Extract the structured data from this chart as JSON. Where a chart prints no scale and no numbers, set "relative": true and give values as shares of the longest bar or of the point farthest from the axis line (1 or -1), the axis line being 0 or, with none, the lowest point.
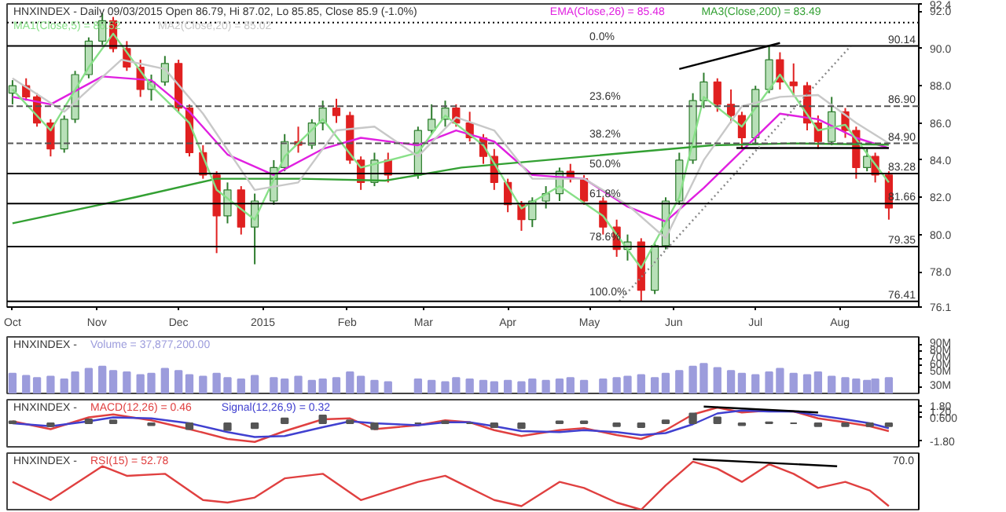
{
  "chart_data": [
    {
      "type": "candlestick",
      "title": "HNXINDEX - Daily 09/03/2015 Open 86.79, Hi 87.02, Lo 85.85, Close 85.9 (-1.0%)",
      "legend": "top left",
      "tick_labels": true,
      "x": [
        "2014-10-01",
        "2014-10-06",
        "2014-10-10",
        "2014-10-15",
        "2014-10-20",
        "2014-10-24",
        "2014-10-29",
        "2014-11-03",
        "2014-11-07",
        "2014-11-12",
        "2014-11-17",
        "2014-11-21",
        "2014-11-26",
        "2014-12-01",
        "2014-12-05",
        "2014-12-10",
        "2014-12-15",
        "2014-12-19",
        "2014-12-24",
        "2014-12-29",
        "2015-01-05",
        "2015-01-09",
        "2015-01-14",
        "2015-01-19",
        "2015-01-23",
        "2015-01-28",
        "2015-02-02",
        "2015-02-06",
        "2015-02-11",
        "2015-02-16",
        "2015-02-27",
        "2015-03-04",
        "2015-03-09",
        "2015-03-13",
        "2015-03-18",
        "2015-03-23",
        "2015-03-27",
        "2015-04-01",
        "2015-04-06",
        "2015-04-10",
        "2015-04-15",
        "2015-04-20",
        "2015-04-24",
        "2015-04-29",
        "2015-05-06",
        "2015-05-11",
        "2015-05-15",
        "2015-05-20",
        "2015-05-25",
        "2015-05-29",
        "2015-06-03",
        "2015-06-08",
        "2015-06-12",
        "2015-06-17",
        "2015-06-22",
        "2015-06-26",
        "2015-07-01",
        "2015-07-06",
        "2015-07-10",
        "2015-07-15",
        "2015-07-20",
        "2015-07-24",
        "2015-07-29",
        "2015-08-03",
        "2015-08-07",
        "2015-08-11",
        "2015-08-14",
        "2015-08-19"
      ],
      "ohlc": [
        [
          87.6,
          88.3,
          87.0,
          88.0
        ],
        [
          88.0,
          88.4,
          87.2,
          87.4
        ],
        [
          87.4,
          87.6,
          85.8,
          86.0
        ],
        [
          86.0,
          86.2,
          84.2,
          84.6
        ],
        [
          84.6,
          86.4,
          84.4,
          86.2
        ],
        [
          86.2,
          88.8,
          86.0,
          88.6
        ],
        [
          88.6,
          90.6,
          88.4,
          90.4
        ],
        [
          90.4,
          91.9,
          90.2,
          91.5
        ],
        [
          91.5,
          91.7,
          89.8,
          90.0
        ],
        [
          90.0,
          90.4,
          88.8,
          89.0
        ],
        [
          89.0,
          89.4,
          87.4,
          87.8
        ],
        [
          87.8,
          88.6,
          87.2,
          88.2
        ],
        [
          88.2,
          89.6,
          88.0,
          89.2
        ],
        [
          89.2,
          89.4,
          86.6,
          86.8
        ],
        [
          86.8,
          87.0,
          84.2,
          84.4
        ],
        [
          84.4,
          84.8,
          83.0,
          83.2
        ],
        [
          83.2,
          83.4,
          79.0,
          81.0
        ],
        [
          81.0,
          82.8,
          80.6,
          82.4
        ],
        [
          82.4,
          82.6,
          80.0,
          80.4
        ],
        [
          80.4,
          82.2,
          78.4,
          81.8
        ],
        [
          81.8,
          84.0,
          81.6,
          83.6
        ],
        [
          83.6,
          85.4,
          83.4,
          85.0
        ],
        [
          85.0,
          85.8,
          84.4,
          84.8
        ],
        [
          84.8,
          86.2,
          84.6,
          86.0
        ],
        [
          86.0,
          87.2,
          85.6,
          86.8
        ],
        [
          86.8,
          87.3,
          86.0,
          86.4
        ],
        [
          86.4,
          86.6,
          83.8,
          84.0
        ],
        [
          84.0,
          84.2,
          82.4,
          82.8
        ],
        [
          82.8,
          84.4,
          82.6,
          84.0
        ],
        [
          84.0,
          84.4,
          82.8,
          83.2
        ],
        [
          83.2,
          85.8,
          83.0,
          85.6
        ],
        [
          85.6,
          87.0,
          85.4,
          86.2
        ],
        [
          86.2,
          87.2,
          85.8,
          86.8
        ],
        [
          86.8,
          87.0,
          85.8,
          86.0
        ],
        [
          86.0,
          86.6,
          85.0,
          85.2
        ],
        [
          85.2,
          85.4,
          83.8,
          84.2
        ],
        [
          84.2,
          84.6,
          82.4,
          82.8
        ],
        [
          82.8,
          83.0,
          81.2,
          81.6
        ],
        [
          81.6,
          81.8,
          80.2,
          80.8
        ],
        [
          80.8,
          82.0,
          80.4,
          81.8
        ],
        [
          81.8,
          82.6,
          81.4,
          82.2
        ],
        [
          82.2,
          83.6,
          81.8,
          83.4
        ],
        [
          83.4,
          83.8,
          82.8,
          83.0
        ],
        [
          83.0,
          83.2,
          81.6,
          81.8
        ],
        [
          81.8,
          82.0,
          80.0,
          80.4
        ],
        [
          80.4,
          80.8,
          78.8,
          79.2
        ],
        [
          79.2,
          80.0,
          78.6,
          79.6
        ],
        [
          79.6,
          79.8,
          76.41,
          77.0
        ],
        [
          77.0,
          79.6,
          76.8,
          79.4
        ],
        [
          79.4,
          82.0,
          79.2,
          81.8
        ],
        [
          81.8,
          84.4,
          81.6,
          84.0
        ],
        [
          84.0,
          87.6,
          83.8,
          87.2
        ],
        [
          87.2,
          88.7,
          86.8,
          88.2
        ],
        [
          88.2,
          88.4,
          86.6,
          87.0
        ],
        [
          87.0,
          87.8,
          86.0,
          86.4
        ],
        [
          86.4,
          86.6,
          84.6,
          85.2
        ],
        [
          85.2,
          88.0,
          84.8,
          87.8
        ],
        [
          87.8,
          90.14,
          87.6,
          89.4
        ],
        [
          89.4,
          89.8,
          87.8,
          88.2
        ],
        [
          88.2,
          89.2,
          87.4,
          88.0
        ],
        [
          88.0,
          88.2,
          85.6,
          86.0
        ],
        [
          86.0,
          86.4,
          84.6,
          85.0
        ],
        [
          85.0,
          87.4,
          84.8,
          86.6
        ],
        [
          86.6,
          86.8,
          85.2,
          85.6
        ],
        [
          85.6,
          85.8,
          83.0,
          83.6
        ],
        [
          83.6,
          84.6,
          83.4,
          84.2
        ],
        [
          84.2,
          84.4,
          82.8,
          83.2
        ],
        [
          83.2,
          83.4,
          80.8,
          81.42
        ]
      ],
      "series": [
        {
          "type": "line",
          "name": "EMA(Close,26) = 85.48",
          "color": "#e020e0",
          "x": [
            "2014-10-01",
            "2014-10-15",
            "2014-11-03",
            "2014-11-21",
            "2014-12-05",
            "2014-12-19",
            "2015-01-05",
            "2015-01-23",
            "2015-02-06",
            "2015-02-27",
            "2015-03-13",
            "2015-03-27",
            "2015-04-10",
            "2015-04-29",
            "2015-05-15",
            "2015-05-29",
            "2015-06-12",
            "2015-06-26",
            "2015-07-10",
            "2015-07-24",
            "2015-08-07",
            "2015-08-19"
          ],
          "values": [
            87.4,
            87.0,
            88.5,
            88.3,
            86.6,
            84.3,
            83.2,
            84.6,
            85.2,
            84.8,
            85.6,
            85.0,
            83.2,
            83.0,
            81.5,
            80.7,
            82.5,
            84.5,
            86.5,
            86.2,
            85.2,
            84.65
          ]
        },
        {
          "type": "line",
          "name": "MA3(Close,200) = 83.49",
          "color": "#33a033",
          "x": [
            "2014-10-01",
            "2014-11-15",
            "2014-12-15",
            "2015-01-15",
            "2015-02-15",
            "2015-03-15",
            "2015-04-15",
            "2015-05-15",
            "2015-06-15",
            "2015-07-15",
            "2015-08-19"
          ],
          "values": [
            80.6,
            82.0,
            83.0,
            83.0,
            82.9,
            83.6,
            84.0,
            84.4,
            84.8,
            84.9,
            84.83
          ]
        },
        {
          "type": "line",
          "name": "MA1(Close,5) = 86.52",
          "color": "#88e088",
          "x": [
            "2014-10-01",
            "2014-10-15",
            "2014-10-29",
            "2014-11-07",
            "2014-11-21",
            "2014-12-05",
            "2014-12-15",
            "2014-12-29",
            "2015-01-09",
            "2015-01-23",
            "2015-02-06",
            "2015-02-27",
            "2015-03-09",
            "2015-03-23",
            "2015-04-06",
            "2015-04-20",
            "2015-05-06",
            "2015-05-20",
            "2015-06-03",
            "2015-06-12",
            "2015-06-26",
            "2015-07-10",
            "2015-07-24",
            "2015-08-03",
            "2015-08-19"
          ],
          "values": [
            87.8,
            85.6,
            89.0,
            90.8,
            88.0,
            86.0,
            82.4,
            80.8,
            84.2,
            86.2,
            83.6,
            84.4,
            86.4,
            84.8,
            81.4,
            82.6,
            81.0,
            78.2,
            82.0,
            87.4,
            85.8,
            88.6,
            85.6,
            85.9,
            82.8
          ]
        },
        {
          "type": "line",
          "name": "MA2(Close,20) = 85.02",
          "color": "#c8c8c8",
          "x": [
            "2014-10-01",
            "2014-10-20",
            "2014-11-10",
            "2014-11-26",
            "2014-12-10",
            "2014-12-29",
            "2015-01-14",
            "2015-01-28",
            "2015-02-11",
            "2015-02-27",
            "2015-03-13",
            "2015-03-27",
            "2015-04-10",
            "2015-04-29",
            "2015-05-15",
            "2015-05-29",
            "2015-06-12",
            "2015-06-26",
            "2015-07-10",
            "2015-07-24",
            "2015-08-07",
            "2015-08-19"
          ],
          "values": [
            88.4,
            86.6,
            89.4,
            88.9,
            86.5,
            82.4,
            82.8,
            85.6,
            85.8,
            84.2,
            86.3,
            85.6,
            83.0,
            83.0,
            81.6,
            79.8,
            84.0,
            86.9,
            87.4,
            87.5,
            86.0,
            84.9
          ]
        },
        {
          "type": "line",
          "color": "#000000",
          "x": [
            "2015-06-03",
            "2015-07-10"
          ],
          "values": [
            88.9,
            90.3
          ]
        },
        {
          "type": "line",
          "color": "#000000",
          "x": [
            "2015-06-24",
            "2015-08-19"
          ],
          "values": [
            84.65,
            84.65
          ]
        },
        {
          "type": "line",
          "color": "#888888",
          "line_style": "dotted",
          "x": [
            "2015-05-12",
            "2015-08-05"
          ],
          "values": [
            76.41,
            90.14
          ]
        }
      ],
      "xlim": [
        "2014-09-29",
        "2015-08-30"
      ],
      "xticks": [
        {
          "value": "2014-10-01",
          "label": "Oct"
        },
        {
          "value": "2014-11-01",
          "label": "Nov"
        },
        {
          "value": "2014-12-01",
          "label": "Dec"
        },
        {
          "value": "2015-01-01",
          "label": "2015"
        },
        {
          "value": "2015-02-01",
          "label": "Feb"
        },
        {
          "value": "2015-03-01",
          "label": "Mar"
        },
        {
          "value": "2015-04-01",
          "label": "Apr"
        },
        {
          "value": "2015-05-01",
          "label": "May"
        },
        {
          "value": "2015-06-01",
          "label": "Jun"
        },
        {
          "value": "2015-07-01",
          "label": "Jul"
        },
        {
          "value": "2015-08-01",
          "label": "Aug"
        }
      ],
      "ylim": [
        76.1,
        92.4
      ],
      "yticks": [
        76.1,
        {
          "value": 78,
          "label": "78.0"
        },
        {
          "value": 80,
          "label": "80.0"
        },
        {
          "value": 82,
          "label": "82.0"
        },
        {
          "value": 84,
          "label": "84.0"
        },
        {
          "value": 86,
          "label": "86.0"
        },
        {
          "value": 88,
          "label": "88.0"
        },
        {
          "value": 90,
          "label": "90.0"
        },
        {
          "value": 92,
          "label": "92.0"
        },
        92.4
      ],
      "ref_lines": [
        {
          "axis": "y",
          "value": 91.4,
          "label": null,
          "color": "#000000",
          "line_style": "dotted"
        },
        {
          "axis": "y",
          "value": 90.14,
          "label": "90.14",
          "color": "#000000",
          "line_style": "solid"
        },
        {
          "axis": "y",
          "value": 86.9,
          "label": "86.90",
          "color": "#555555",
          "line_style": "dashed"
        },
        {
          "axis": "y",
          "value": 84.9,
          "label": "84.90",
          "color": "#555555",
          "line_style": "dashed"
        },
        {
          "axis": "y",
          "value": 83.28,
          "label": "83.28",
          "color": "#000000",
          "line_style": "solid"
        },
        {
          "axis": "y",
          "value": 81.66,
          "label": "81.66",
          "color": "#000000",
          "line_style": "solid"
        },
        {
          "axis": "y",
          "value": 79.35,
          "label": "79.35",
          "color": "#000000",
          "line_style": "solid"
        },
        {
          "axis": "y",
          "value": 76.41,
          "label": "76.41",
          "color": "#000000",
          "line_style": "solid"
        }
      ],
      "annotations": [
        {
          "text": "0.0%",
          "x": "2015-05-01",
          "y": 90.14
        },
        {
          "text": "23.6%",
          "x": "2015-05-01",
          "y": 86.9
        },
        {
          "text": "38.2%",
          "x": "2015-05-01",
          "y": 84.9
        },
        {
          "text": "50.0%",
          "x": "2015-05-01",
          "y": 83.28
        },
        {
          "text": "61.8%",
          "x": "2015-05-01",
          "y": 81.66
        },
        {
          "text": "78.6%",
          "x": "2015-05-01",
          "y": 79.35
        },
        {
          "text": "100.0%",
          "x": "2015-05-01",
          "y": 76.41
        }
      ]
    },
    {
      "type": "bar",
      "title": "HNXINDEX -",
      "legend": "top left",
      "tick_labels": "y",
      "xlim": [
        "2014-09-29",
        "2015-08-30"
      ],
      "x": [
        "2014-10-01",
        "2014-10-06",
        "2014-10-10",
        "2014-10-15",
        "2014-10-20",
        "2014-10-24",
        "2014-10-29",
        "2014-11-03",
        "2014-11-07",
        "2014-11-12",
        "2014-11-17",
        "2014-11-21",
        "2014-11-26",
        "2014-12-01",
        "2014-12-05",
        "2014-12-10",
        "2014-12-15",
        "2014-12-19",
        "2014-12-24",
        "2014-12-29",
        "2015-01-05",
        "2015-01-09",
        "2015-01-14",
        "2015-01-19",
        "2015-01-23",
        "2015-01-28",
        "2015-02-02",
        "2015-02-06",
        "2015-02-11",
        "2015-02-16",
        "2015-02-27",
        "2015-03-04",
        "2015-03-09",
        "2015-03-13",
        "2015-03-18",
        "2015-03-23",
        "2015-03-27",
        "2015-04-01",
        "2015-04-06",
        "2015-04-10",
        "2015-04-15",
        "2015-04-20",
        "2015-04-24",
        "2015-04-29",
        "2015-05-06",
        "2015-05-11",
        "2015-05-15",
        "2015-05-20",
        "2015-05-25",
        "2015-05-29",
        "2015-06-03",
        "2015-06-08",
        "2015-06-12",
        "2015-06-17",
        "2015-06-22",
        "2015-06-26",
        "2015-07-01",
        "2015-07-06",
        "2015-07-10",
        "2015-07-15",
        "2015-07-20",
        "2015-07-24",
        "2015-07-29",
        "2015-08-03",
        "2015-08-07",
        "2015-08-11",
        "2015-08-14",
        "2015-08-19"
      ],
      "series": [
        {
          "name": "Volume = 37,877,200.00",
          "color": "#9c9cdc",
          "values": [
            48,
            45,
            42,
            44,
            40,
            50,
            55,
            58,
            52,
            50,
            46,
            48,
            55,
            52,
            46,
            44,
            48,
            42,
            40,
            45,
            42,
            40,
            44,
            38,
            40,
            42,
            50,
            44,
            38,
            36,
            40,
            38,
            36,
            42,
            40,
            38,
            36,
            38,
            36,
            40,
            38,
            40,
            42,
            38,
            40,
            42,
            44,
            46,
            42,
            48,
            52,
            58,
            62,
            56,
            52,
            48,
            46,
            50,
            55,
            48,
            46,
            50,
            44,
            42,
            40,
            38,
            40,
            42
          ]
        }
      ],
      "ylim": [
        20,
        100
      ],
      "yticks": [
        {
          "value": 30,
          "label": "30M"
        },
        {
          "value": 50,
          "label": "50M"
        },
        {
          "value": 60,
          "label": "60M"
        },
        {
          "value": 70,
          "label": "70M"
        },
        {
          "value": 80,
          "label": "80M"
        },
        {
          "value": 90,
          "label": "90M"
        }
      ]
    },
    {
      "type": "line",
      "title": "HNXINDEX -",
      "legend": "top left",
      "tick_labels": "y",
      "xlim": [
        "2014-09-29",
        "2015-08-30"
      ],
      "x": [
        "2014-10-01",
        "2014-10-15",
        "2014-10-29",
        "2014-11-07",
        "2014-11-21",
        "2014-12-05",
        "2014-12-19",
        "2014-12-29",
        "2015-01-09",
        "2015-01-23",
        "2015-02-02",
        "2015-02-11",
        "2015-02-27",
        "2015-03-09",
        "2015-03-18",
        "2015-03-27",
        "2015-04-06",
        "2015-04-20",
        "2015-04-29",
        "2015-05-11",
        "2015-05-20",
        "2015-05-29",
        "2015-06-08",
        "2015-06-17",
        "2015-06-26",
        "2015-07-06",
        "2015-07-15",
        "2015-07-24",
        "2015-08-03",
        "2015-08-12",
        "2015-08-19"
      ],
      "series": [
        {
          "type": "bar",
          "color": "#555555",
          "values": [
            0.2,
            -0.3,
            0.4,
            0.3,
            -0.2,
            -0.6,
            -0.7,
            -0.5,
            0.5,
            0.8,
            0.3,
            -0.6,
            0.0,
            0.2,
            0.0,
            -0.4,
            -0.5,
            0.2,
            0.2,
            -0.3,
            -0.4,
            0.3,
            1.0,
            0.6,
            -0.2,
            0.1,
            0.0,
            -0.3,
            -0.3,
            -0.3,
            -0.3
          ]
        },
        {
          "name": "MACD(12,26) = 0.46",
          "color": "#e04040",
          "values": [
            0.2,
            -0.6,
            0.6,
            0.9,
            0.3,
            -0.6,
            -1.6,
            -1.9,
            -0.8,
            0.4,
            0.5,
            -0.6,
            -0.2,
            0.3,
            0.1,
            -0.7,
            -1.3,
            -0.7,
            -0.5,
            -1.2,
            -1.6,
            -0.7,
            0.9,
            1.6,
            1.1,
            1.3,
            1.2,
            0.5,
            0.1,
            -0.3,
            -0.8
          ]
        },
        {
          "name": "Signal(12,26,9) = 0.32",
          "color": "#4040d0",
          "values": [
            0.0,
            -0.3,
            0.2,
            0.6,
            0.5,
            0.0,
            -0.9,
            -1.4,
            -1.3,
            -0.4,
            0.2,
            0.0,
            -0.2,
            0.1,
            0.1,
            -0.3,
            -0.8,
            -0.9,
            -0.7,
            -0.9,
            -1.2,
            -1.0,
            -0.1,
            1.0,
            1.3,
            1.2,
            1.2,
            0.8,
            0.4,
            0.0,
            -0.5
          ]
        },
        {
          "color": "#000000",
          "x": [
            "2015-06-12",
            "2015-07-24"
          ],
          "values": [
            1.7,
            1.1
          ]
        }
      ],
      "ylim": [
        -2.4,
        2.4
      ],
      "yticks": [
        {
          "value": -1.8,
          "label": "-1.80"
        },
        {
          "value": 0.6,
          "label": "0.600"
        },
        {
          "value": 1.2,
          "label": "1.20"
        },
        {
          "value": 1.8,
          "label": "1.80"
        }
      ]
    },
    {
      "type": "line",
      "title": "HNXINDEX -",
      "legend": "top left",
      "tick_labels": "y",
      "xlim": [
        "2014-09-29",
        "2015-08-30"
      ],
      "x": [
        "2014-10-01",
        "2014-10-15",
        "2014-11-03",
        "2014-11-12",
        "2014-11-26",
        "2014-12-10",
        "2014-12-19",
        "2014-12-29",
        "2015-01-09",
        "2015-01-23",
        "2015-02-06",
        "2015-02-27",
        "2015-03-09",
        "2015-03-18",
        "2015-03-27",
        "2015-04-06",
        "2015-04-20",
        "2015-04-29",
        "2015-05-11",
        "2015-05-20",
        "2015-05-29",
        "2015-06-08",
        "2015-06-17",
        "2015-06-26",
        "2015-07-06",
        "2015-07-15",
        "2015-07-24",
        "2015-08-03",
        "2015-08-12",
        "2015-08-19"
      ],
      "series": [
        {
          "name": "RSI(15) = 52.78",
          "color": "#e04040",
          "values": [
            0.55,
            0.19,
            0.86,
            0.67,
            0.71,
            0.19,
            0.14,
            0.24,
            0.62,
            0.71,
            0.19,
            0.55,
            0.67,
            0.43,
            0.19,
            0.07,
            0.55,
            0.43,
            0.14,
            0,
            0.48,
            0.95,
            0.81,
            0.55,
            0.9,
            0.71,
            0.43,
            0.55,
            0.38,
            0.07
          ]
        },
        {
          "color": "#000000",
          "x": [
            "2015-06-08",
            "2015-07-31"
          ],
          "values": [
            1,
            0.86
          ]
        }
      ],
      "relative": true,
      "annotations": [
        "70.0"
      ]
    }
  ]
}
